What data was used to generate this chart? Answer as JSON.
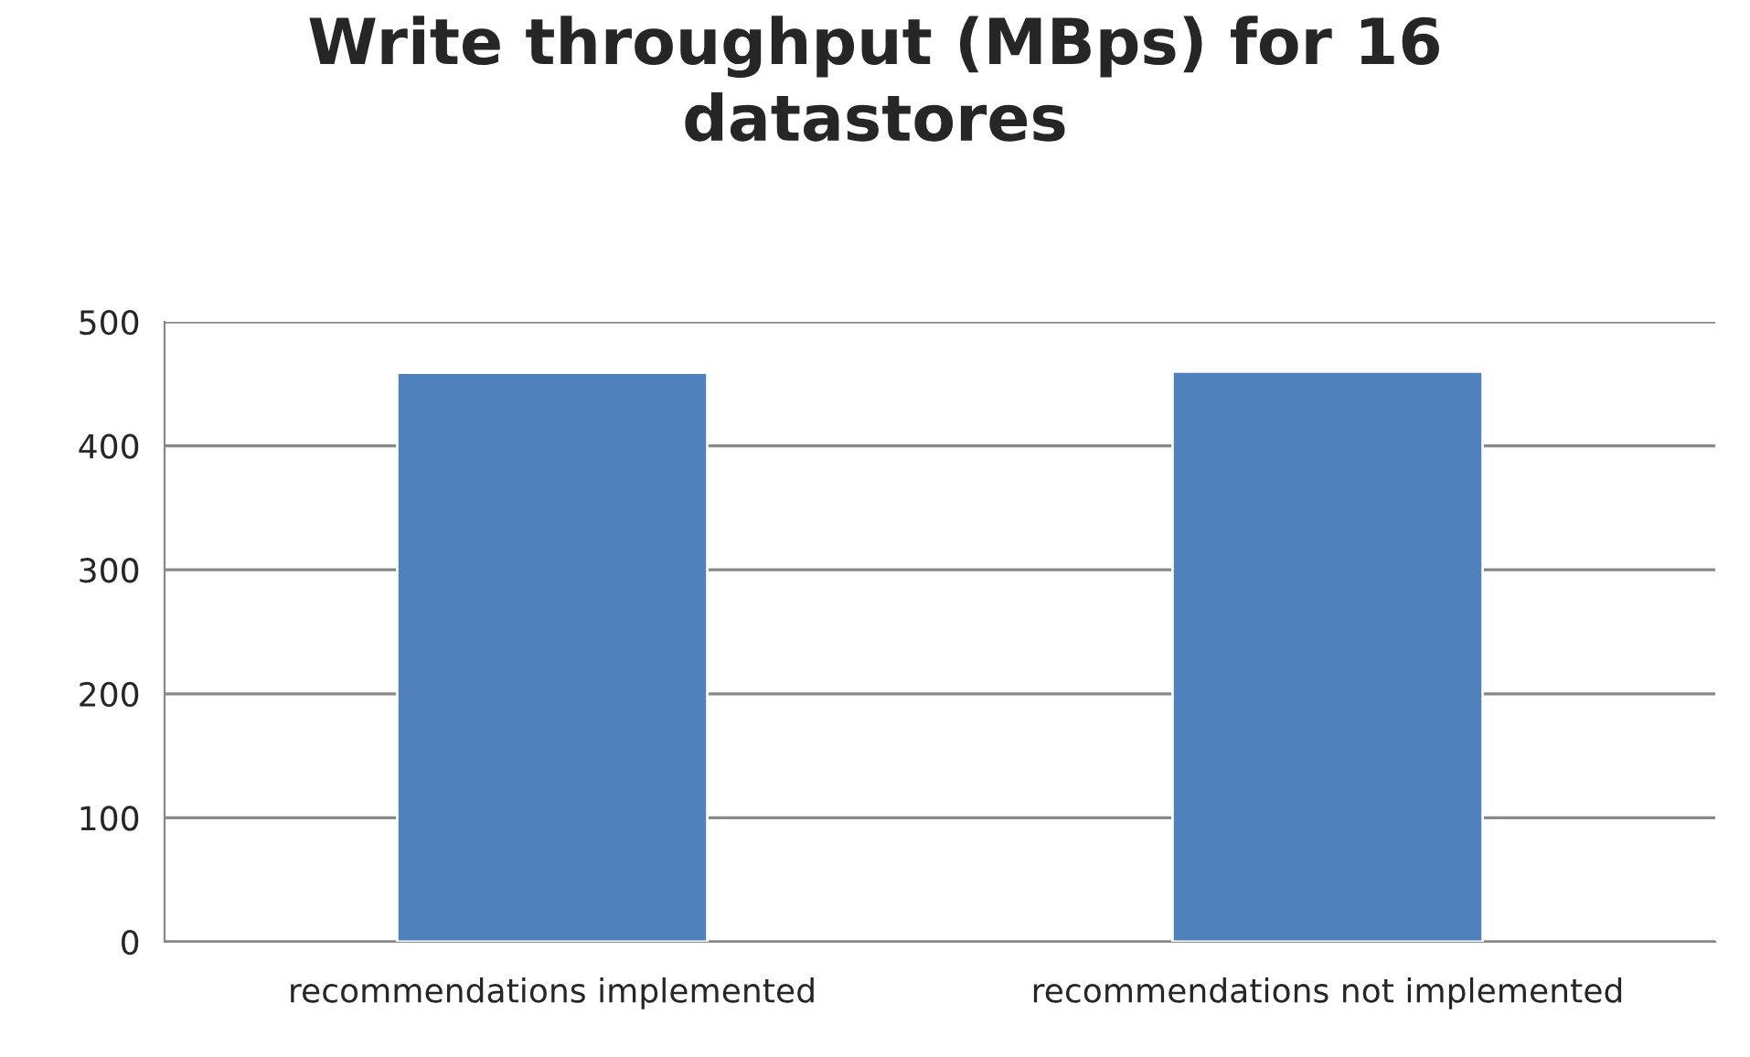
{
  "chart_data": {
    "type": "bar",
    "title": "Write throughput (MBps) for 16\ndatastores",
    "categories": [
      "recommendations implemented",
      "recommendations not implemented"
    ],
    "values": [
      459,
      460
    ],
    "color": "#4f81bd",
    "ylim": [
      0,
      500
    ],
    "yticks": [
      0,
      100,
      200,
      300,
      400,
      500
    ],
    "grid": "y",
    "legend": false
  }
}
